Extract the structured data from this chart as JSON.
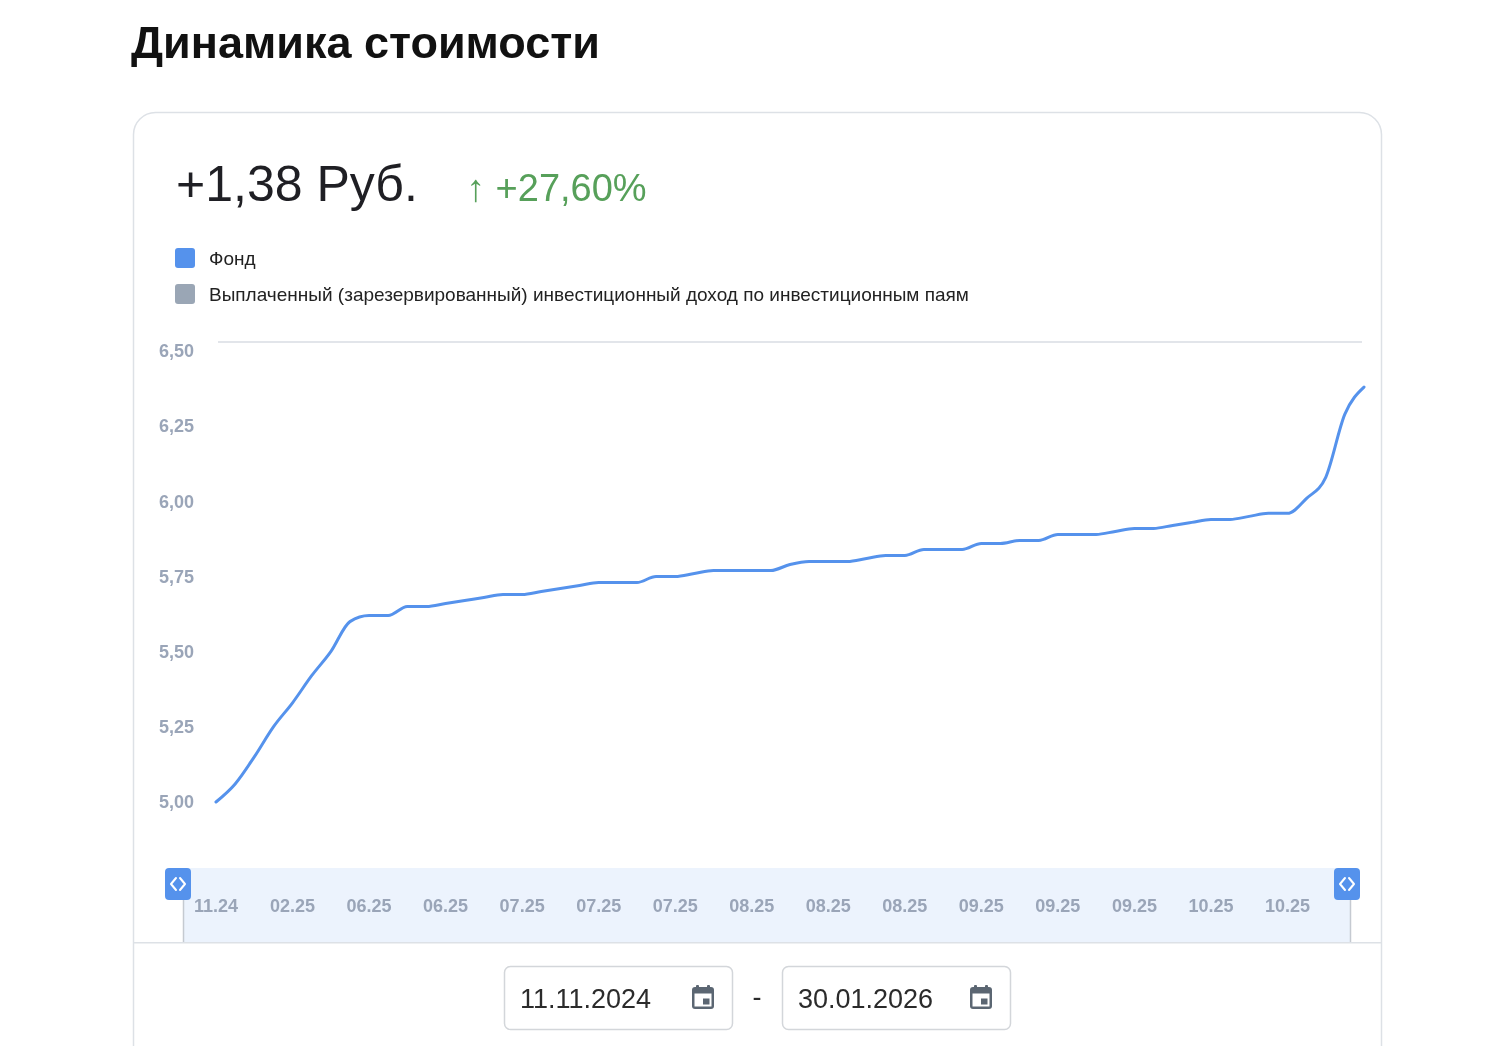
{
  "chart_data": {
    "type": "line",
    "title": "Динамика стоимости",
    "annotations": [
      "+1,38 Руб.",
      "↑ +27,60%",
      "11.11.2024",
      "-",
      "30.01.2026"
    ],
    "legend": "top left",
    "categories": [
      "11.24",
      null,
      null,
      null,
      "02.25",
      null,
      null,
      null,
      "06.25",
      null,
      null,
      null,
      "06.25",
      null,
      null,
      null,
      "07.25",
      null,
      null,
      null,
      "07.25",
      null,
      null,
      null,
      "07.25",
      null,
      null,
      null,
      "08.25",
      null,
      null,
      null,
      "08.25",
      null,
      null,
      null,
      "08.25",
      null,
      null,
      null,
      "09.25",
      null,
      null,
      null,
      "09.25",
      null,
      null,
      null,
      "09.25",
      null,
      null,
      null,
      "10.25",
      null,
      null,
      null,
      "10.25",
      null,
      null,
      null,
      null
    ],
    "series": [
      {
        "name": "Фонд",
        "color": "#5592ec",
        "values": [
          5.0,
          5.06,
          5.15,
          5.25,
          5.33,
          5.42,
          5.5,
          5.6,
          5.62,
          5.62,
          5.65,
          5.65,
          5.66,
          5.67,
          5.68,
          5.69,
          5.69,
          5.7,
          5.71,
          5.72,
          5.73,
          5.73,
          5.73,
          5.75,
          5.75,
          5.76,
          5.77,
          5.77,
          5.77,
          5.77,
          5.79,
          5.8,
          5.8,
          5.8,
          5.81,
          5.82,
          5.82,
          5.84,
          5.84,
          5.84,
          5.86,
          5.86,
          5.87,
          5.87,
          5.89,
          5.89,
          5.89,
          5.9,
          5.91,
          5.91,
          5.92,
          5.93,
          5.94,
          5.94,
          5.95,
          5.96,
          5.96,
          6.01,
          6.08,
          6.29,
          6.38
        ]
      },
      {
        "name": "Выплаченный (зарезервированный) инвестиционный доход по инвестиционным паям",
        "color": "#9aa6b5",
        "values": [
          null,
          null,
          null,
          null,
          null,
          null,
          null,
          null,
          null,
          null,
          null,
          null,
          null,
          null,
          null,
          null,
          null,
          null,
          null,
          null,
          null,
          null,
          null,
          null,
          null,
          null,
          null,
          null,
          null,
          null,
          null,
          null,
          null,
          null,
          null,
          null,
          null,
          null,
          null,
          null,
          null,
          null,
          null,
          null,
          null,
          null,
          null,
          null,
          null,
          null,
          null,
          null,
          null,
          null,
          null,
          null,
          null,
          null,
          null,
          null,
          null
        ]
      }
    ],
    "ylim": [
      5.0,
      6.53
    ],
    "yticks": [
      {
        "value": 5.0,
        "label": "5,00"
      },
      {
        "value": 5.25,
        "label": "5,25"
      },
      {
        "value": 5.5,
        "label": "5,50"
      },
      {
        "value": 5.75,
        "label": "5,75"
      },
      {
        "value": 6.0,
        "label": "6,00"
      },
      {
        "value": 6.25,
        "label": "6,25"
      },
      {
        "value": 6.5,
        "label": "6,50"
      }
    ]
  }
}
